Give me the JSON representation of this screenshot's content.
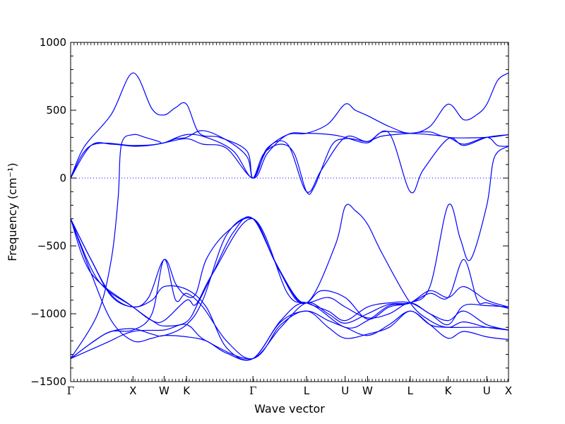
{
  "chart_data": {
    "type": "line",
    "title": "",
    "xlabel": "Wave vector",
    "ylabel": "Frequency (cm⁻¹)",
    "ylim": [
      -1500,
      1000
    ],
    "yticks": [
      1000,
      500,
      0,
      -500,
      -1000,
      -1500
    ],
    "ytick_labels": [
      "1000",
      "500",
      "0",
      "−500",
      "−1000",
      "−1500"
    ],
    "x_range": [
      0,
      6.46
    ],
    "high_symmetry_points": [
      {
        "label": "Γ",
        "x": 0.0
      },
      {
        "label": "X",
        "x": 0.92
      },
      {
        "label": "W",
        "x": 1.38
      },
      {
        "label": "K",
        "x": 1.71
      },
      {
        "label": "Γ",
        "x": 2.69
      },
      {
        "label": "L",
        "x": 3.48
      },
      {
        "label": "U",
        "x": 4.05
      },
      {
        "label": "W",
        "x": 4.38
      },
      {
        "label": "L",
        "x": 5.01
      },
      {
        "label": "K",
        "x": 5.57
      },
      {
        "label": "U",
        "x": 6.14
      },
      {
        "label": "X",
        "x": 6.46
      }
    ],
    "zero_line": {
      "y": 0,
      "style": "dotted"
    },
    "grid": false,
    "line_color": "#0000ff",
    "series": [
      {
        "points": [
          [
            0,
            0
          ],
          [
            0.2,
            230
          ],
          [
            0.6,
            470
          ],
          [
            0.92,
            775
          ],
          [
            1.2,
            510
          ],
          [
            1.38,
            465
          ],
          [
            1.55,
            520
          ],
          [
            1.71,
            545
          ],
          [
            1.9,
            330
          ],
          [
            2.2,
            300
          ],
          [
            2.6,
            200
          ],
          [
            2.69,
            0
          ],
          [
            2.9,
            210
          ],
          [
            3.2,
            320
          ],
          [
            3.48,
            330
          ],
          [
            3.8,
            400
          ],
          [
            4.05,
            545
          ],
          [
            4.2,
            500
          ],
          [
            4.38,
            460
          ],
          [
            4.7,
            380
          ],
          [
            5.01,
            330
          ],
          [
            5.3,
            380
          ],
          [
            5.57,
            545
          ],
          [
            5.8,
            430
          ],
          [
            6.0,
            470
          ],
          [
            6.14,
            545
          ],
          [
            6.3,
            720
          ],
          [
            6.46,
            775
          ]
        ]
      },
      {
        "points": [
          [
            0,
            0
          ],
          [
            0.3,
            240
          ],
          [
            0.6,
            250
          ],
          [
            0.92,
            235
          ],
          [
            1.15,
            240
          ],
          [
            1.38,
            260
          ],
          [
            1.55,
            290
          ],
          [
            1.71,
            300
          ],
          [
            1.95,
            350
          ],
          [
            2.3,
            280
          ],
          [
            2.6,
            160
          ],
          [
            2.69,
            0
          ],
          [
            2.85,
            180
          ],
          [
            3.1,
            250
          ],
          [
            3.3,
            180
          ],
          [
            3.48,
            -100
          ],
          [
            3.6,
            -60
          ],
          [
            3.85,
            240
          ],
          [
            4.05,
            290
          ],
          [
            4.2,
            285
          ],
          [
            4.38,
            270
          ],
          [
            4.6,
            310
          ],
          [
            5.01,
            330
          ],
          [
            5.3,
            340
          ],
          [
            5.57,
            300
          ],
          [
            6.14,
            300
          ],
          [
            6.46,
            320
          ]
        ]
      },
      {
        "points": [
          [
            0,
            0
          ],
          [
            0.3,
            240
          ],
          [
            0.92,
            240
          ],
          [
            1.2,
            245
          ],
          [
            1.38,
            260
          ],
          [
            1.71,
            290
          ],
          [
            1.95,
            250
          ],
          [
            2.3,
            220
          ],
          [
            2.69,
            0
          ],
          [
            2.9,
            180
          ],
          [
            3.2,
            320
          ],
          [
            3.48,
            330
          ],
          [
            3.85,
            320
          ],
          [
            4.05,
            300
          ],
          [
            4.38,
            260
          ],
          [
            4.6,
            340
          ],
          [
            5.01,
            330
          ],
          [
            5.3,
            320
          ],
          [
            5.57,
            300
          ],
          [
            5.8,
            250
          ],
          [
            6.14,
            300
          ],
          [
            6.3,
            240
          ],
          [
            6.46,
            235
          ]
        ]
      },
      {
        "points": [
          [
            0,
            -1330
          ],
          [
            0.4,
            -1000
          ],
          [
            0.6,
            -600
          ],
          [
            0.7,
            -150
          ],
          [
            0.75,
            250
          ],
          [
            0.92,
            320
          ],
          [
            1.1,
            300
          ],
          [
            1.3,
            270
          ],
          [
            1.38,
            260
          ],
          [
            1.7,
            320
          ],
          [
            2.0,
            300
          ],
          [
            2.4,
            200
          ],
          [
            2.69,
            0
          ],
          [
            2.9,
            220
          ],
          [
            3.2,
            250
          ],
          [
            3.48,
            -100
          ],
          [
            3.7,
            60
          ],
          [
            4.05,
            300
          ],
          [
            4.38,
            270
          ],
          [
            4.7,
            330
          ],
          [
            5.01,
            -100
          ],
          [
            5.2,
            60
          ],
          [
            5.57,
            290
          ],
          [
            5.8,
            240
          ],
          [
            6.14,
            300
          ],
          [
            6.46,
            320
          ]
        ]
      },
      {
        "points": [
          [
            0,
            -1330
          ],
          [
            0.35,
            -1200
          ],
          [
            0.6,
            -1130
          ],
          [
            0.92,
            -1120
          ],
          [
            1.2,
            -1000
          ],
          [
            1.38,
            -600
          ],
          [
            1.55,
            -900
          ],
          [
            1.71,
            -850
          ],
          [
            1.95,
            -950
          ],
          [
            2.3,
            -1200
          ],
          [
            2.69,
            -1330
          ],
          [
            3.1,
            -1100
          ],
          [
            3.48,
            -920
          ],
          [
            3.8,
            -1000
          ],
          [
            4.05,
            -1070
          ],
          [
            4.38,
            -1000
          ],
          [
            4.7,
            -930
          ],
          [
            5.01,
            -920
          ],
          [
            5.3,
            -850
          ],
          [
            5.57,
            -880
          ],
          [
            5.8,
            -600
          ],
          [
            6.0,
            -900
          ],
          [
            6.14,
            -920
          ],
          [
            6.46,
            -960
          ]
        ]
      },
      {
        "points": [
          [
            0,
            -1330
          ],
          [
            0.35,
            -1200
          ],
          [
            0.6,
            -1130
          ],
          [
            0.92,
            -1110
          ],
          [
            1.2,
            -1150
          ],
          [
            1.38,
            -1160
          ],
          [
            1.71,
            -1080
          ],
          [
            1.95,
            -900
          ],
          [
            2.3,
            -420
          ],
          [
            2.69,
            -300
          ],
          [
            3.0,
            -600
          ],
          [
            3.3,
            -860
          ],
          [
            3.48,
            -920
          ],
          [
            3.8,
            -880
          ],
          [
            4.05,
            -950
          ],
          [
            4.38,
            -1030
          ],
          [
            4.7,
            -1000
          ],
          [
            5.01,
            -920
          ],
          [
            5.3,
            -1000
          ],
          [
            5.57,
            -1050
          ],
          [
            5.8,
            -980
          ],
          [
            6.14,
            -1080
          ],
          [
            6.46,
            -1120
          ]
        ]
      },
      {
        "points": [
          [
            0,
            -300
          ],
          [
            0.3,
            -600
          ],
          [
            0.6,
            -860
          ],
          [
            0.92,
            -950
          ],
          [
            1.15,
            -880
          ],
          [
            1.38,
            -600
          ],
          [
            1.55,
            -780
          ],
          [
            1.71,
            -870
          ],
          [
            1.85,
            -850
          ],
          [
            2.0,
            -600
          ],
          [
            2.3,
            -400
          ],
          [
            2.69,
            -300
          ],
          [
            3.0,
            -600
          ],
          [
            3.3,
            -880
          ],
          [
            3.48,
            -920
          ],
          [
            3.7,
            -830
          ],
          [
            4.05,
            -880
          ],
          [
            4.38,
            -1040
          ],
          [
            4.7,
            -950
          ],
          [
            5.01,
            -920
          ],
          [
            5.3,
            -830
          ],
          [
            5.57,
            -880
          ],
          [
            5.8,
            -800
          ],
          [
            6.14,
            -900
          ],
          [
            6.46,
            -950
          ]
        ]
      },
      {
        "points": [
          [
            0,
            -300
          ],
          [
            0.3,
            -700
          ],
          [
            0.6,
            -1050
          ],
          [
            0.92,
            -1200
          ],
          [
            1.2,
            -1180
          ],
          [
            1.38,
            -1160
          ],
          [
            1.71,
            -1170
          ],
          [
            2.0,
            -1200
          ],
          [
            2.3,
            -1290
          ],
          [
            2.69,
            -1330
          ],
          [
            3.1,
            -1060
          ],
          [
            3.48,
            -980
          ],
          [
            3.8,
            -1050
          ],
          [
            4.05,
            -1100
          ],
          [
            4.38,
            -1160
          ],
          [
            4.7,
            -1080
          ],
          [
            5.01,
            -980
          ],
          [
            5.3,
            -1080
          ],
          [
            5.57,
            -1180
          ],
          [
            5.8,
            -1130
          ],
          [
            6.14,
            -1170
          ],
          [
            6.46,
            -1190
          ]
        ]
      },
      {
        "points": [
          [
            0,
            -300
          ],
          [
            0.4,
            -750
          ],
          [
            0.92,
            -950
          ],
          [
            1.2,
            -1050
          ],
          [
            1.38,
            -1090
          ],
          [
            1.71,
            -1060
          ],
          [
            1.9,
            -900
          ],
          [
            2.1,
            -700
          ],
          [
            2.4,
            -400
          ],
          [
            2.69,
            -300
          ],
          [
            3.1,
            -700
          ],
          [
            3.48,
            -920
          ],
          [
            3.9,
            -500
          ],
          [
            4.05,
            -210
          ],
          [
            4.2,
            -240
          ],
          [
            4.38,
            -340
          ],
          [
            4.6,
            -560
          ],
          [
            5.01,
            -920
          ],
          [
            5.3,
            -1050
          ],
          [
            5.57,
            -1100
          ],
          [
            5.8,
            -1060
          ],
          [
            6.14,
            -1100
          ],
          [
            6.46,
            -1120
          ]
        ]
      },
      {
        "points": [
          [
            0,
            -1330
          ],
          [
            0.5,
            -1220
          ],
          [
            0.92,
            -1130
          ],
          [
            1.38,
            -1120
          ],
          [
            1.71,
            -1080
          ],
          [
            2.0,
            -1200
          ],
          [
            2.69,
            -1330
          ],
          [
            3.1,
            -1080
          ],
          [
            3.48,
            -980
          ],
          [
            3.8,
            -1100
          ],
          [
            4.05,
            -1180
          ],
          [
            4.38,
            -1150
          ],
          [
            4.7,
            -1100
          ],
          [
            5.01,
            -980
          ],
          [
            5.3,
            -1080
          ],
          [
            5.57,
            -1100
          ],
          [
            6.14,
            -1100
          ],
          [
            6.46,
            -1120
          ]
        ]
      },
      {
        "points": [
          [
            0,
            -300
          ],
          [
            0.3,
            -700
          ],
          [
            0.92,
            -950
          ],
          [
            1.2,
            -1050
          ],
          [
            1.38,
            -1050
          ],
          [
            1.71,
            -900
          ],
          [
            1.85,
            -930
          ],
          [
            2.1,
            -700
          ],
          [
            2.69,
            -300
          ],
          [
            3.2,
            -850
          ],
          [
            3.48,
            -920
          ],
          [
            3.8,
            -980
          ],
          [
            4.05,
            -1050
          ],
          [
            4.38,
            -950
          ],
          [
            4.7,
            -920
          ],
          [
            5.01,
            -920
          ],
          [
            5.3,
            -1000
          ],
          [
            5.57,
            -1080
          ],
          [
            5.8,
            -940
          ],
          [
            6.14,
            -940
          ],
          [
            6.46,
            -950
          ]
        ]
      },
      {
        "points": [
          [
            0,
            -300
          ],
          [
            0.3,
            -600
          ],
          [
            0.6,
            -870
          ],
          [
            0.92,
            -950
          ],
          [
            1.2,
            -900
          ],
          [
            1.38,
            -800
          ],
          [
            1.71,
            -820
          ],
          [
            2.0,
            -950
          ],
          [
            2.3,
            -1250
          ],
          [
            2.69,
            -1330
          ],
          [
            3.1,
            -1050
          ],
          [
            3.48,
            -920
          ],
          [
            4.05,
            -1100
          ],
          [
            4.38,
            -1050
          ],
          [
            4.7,
            -940
          ],
          [
            5.01,
            -920
          ],
          [
            5.3,
            -800
          ],
          [
            5.57,
            -200
          ],
          [
            5.75,
            -450
          ],
          [
            5.9,
            -600
          ],
          [
            6.14,
            -200
          ],
          [
            6.25,
            150
          ],
          [
            6.46,
            235
          ]
        ]
      }
    ]
  }
}
